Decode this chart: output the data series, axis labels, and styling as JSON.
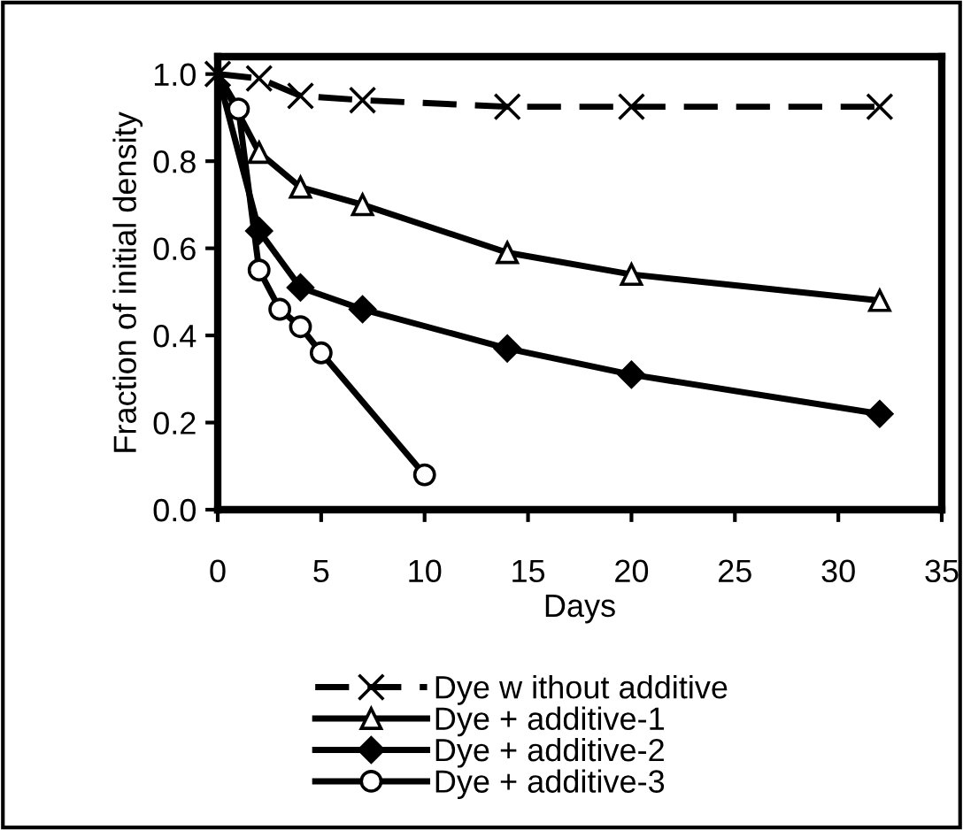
{
  "chart_data": {
    "type": "line",
    "xlabel": "Days",
    "ylabel": "Fraction of initial density",
    "xlim": [
      0,
      35
    ],
    "xticks": [
      0,
      5,
      10,
      15,
      20,
      25,
      30,
      35
    ],
    "ylim": [
      0,
      1.04
    ],
    "yticks": [
      {
        "value": 0,
        "label": "0.0"
      },
      {
        "value": 0.2,
        "label": "0.2"
      },
      {
        "value": 0.4,
        "label": "0.4"
      },
      {
        "value": 0.6,
        "label": "0.6"
      },
      {
        "value": 0.8,
        "label": "0.8"
      },
      {
        "value": 1.0,
        "label": "1.0"
      }
    ],
    "grid": false,
    "legend": "bottom",
    "series": [
      {
        "name": "Dye w ithout additive",
        "color": "#000000",
        "marker": "cross",
        "line_style": "dashed",
        "x": [
          0,
          2,
          4,
          7,
          14,
          20,
          32
        ],
        "values": [
          1.0,
          0.99,
          0.95,
          0.94,
          0.925,
          0.925,
          0.925
        ]
      },
      {
        "name": "Dye + additive-1",
        "color": "#000000",
        "marker": "triangle",
        "line_style": "solid",
        "x": [
          0,
          2,
          4,
          7,
          14,
          20,
          32
        ],
        "values": [
          1.0,
          0.82,
          0.74,
          0.7,
          0.59,
          0.54,
          0.48
        ]
      },
      {
        "name": "Dye + additive-2",
        "color": "#000000",
        "marker": "diamond",
        "line_style": "solid",
        "x": [
          0,
          2,
          4,
          7,
          14,
          20,
          32
        ],
        "values": [
          1.0,
          0.64,
          0.51,
          0.46,
          0.37,
          0.31,
          0.22
        ]
      },
      {
        "name": "Dye + additive-3",
        "color": "#000000",
        "marker": "circle",
        "line_style": "solid",
        "x": [
          0,
          1,
          2,
          3,
          4,
          5,
          10
        ],
        "values": [
          1.0,
          0.92,
          0.55,
          0.46,
          0.42,
          0.36,
          0.08
        ]
      }
    ]
  }
}
